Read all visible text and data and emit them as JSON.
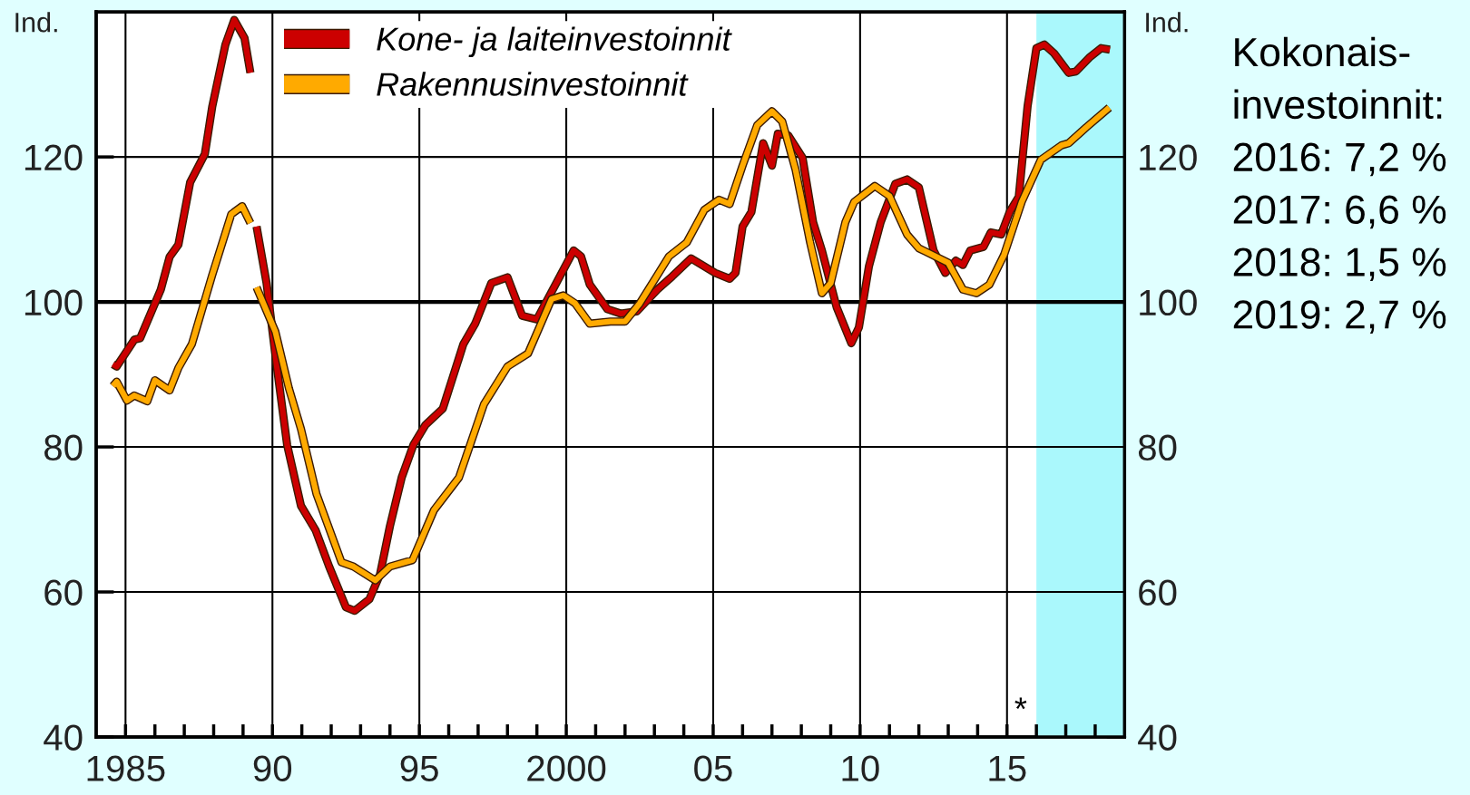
{
  "chart_data": {
    "type": "line",
    "ylabel": "Ind.",
    "y2label": "Ind.",
    "xlim": [
      1984,
      2019
    ],
    "ylim": [
      40,
      140
    ],
    "y2lim": [
      40,
      140
    ],
    "xticks": [
      {
        "value": 1985,
        "label": "1985"
      },
      {
        "value": 1986,
        "label": null
      },
      {
        "value": 1987,
        "label": null
      },
      {
        "value": 1988,
        "label": null
      },
      {
        "value": 1989,
        "label": null
      },
      {
        "value": 1990,
        "label": "90"
      },
      {
        "value": 1991,
        "label": null
      },
      {
        "value": 1992,
        "label": null
      },
      {
        "value": 1993,
        "label": null
      },
      {
        "value": 1994,
        "label": null
      },
      {
        "value": 1995,
        "label": "95"
      },
      {
        "value": 1996,
        "label": null
      },
      {
        "value": 1997,
        "label": null
      },
      {
        "value": 1998,
        "label": null
      },
      {
        "value": 1999,
        "label": null
      },
      {
        "value": 2000,
        "label": "2000"
      },
      {
        "value": 2001,
        "label": null
      },
      {
        "value": 2002,
        "label": null
      },
      {
        "value": 2003,
        "label": null
      },
      {
        "value": 2004,
        "label": null
      },
      {
        "value": 2005,
        "label": "05"
      },
      {
        "value": 2006,
        "label": null
      },
      {
        "value": 2007,
        "label": null
      },
      {
        "value": 2008,
        "label": null
      },
      {
        "value": 2009,
        "label": null
      },
      {
        "value": 2010,
        "label": "10"
      },
      {
        "value": 2011,
        "label": null
      },
      {
        "value": 2012,
        "label": null
      },
      {
        "value": 2013,
        "label": null
      },
      {
        "value": 2014,
        "label": null
      },
      {
        "value": 2015,
        "label": "15"
      },
      {
        "value": 2016,
        "label": null
      },
      {
        "value": 2017,
        "label": null
      },
      {
        "value": 2018,
        "label": null
      }
    ],
    "yticks": [
      40,
      60,
      80,
      100,
      120
    ],
    "y2ticks": [
      40,
      60,
      80,
      100,
      120
    ],
    "grid": true,
    "legend": "top",
    "line_style": "solid",
    "marker": "none",
    "ref_lines": [
      {
        "axis": "y",
        "value": 100,
        "color": "#000000"
      }
    ],
    "bands": [
      {
        "axis": "x",
        "from": 2016,
        "to": 2019,
        "color": "#aaf8fc"
      }
    ],
    "annotations": [
      "*",
      "Kokonais-",
      "investoinnit:",
      "2016: 7,2 %",
      "2017: 6,6 %",
      "2018: 1,5 %",
      "2019: 2,7 %"
    ],
    "series": [
      {
        "name": "Kone- ja laiteinvestoinnit",
        "color": "#cc0000",
        "x": [
          1984.57,
          1984.7,
          1985.3,
          1985.5,
          1986.2,
          1986.5,
          1986.8,
          1987.2,
          1987.7,
          1987.95,
          1988.4,
          1988.7,
          1989.05,
          1989.25,
          1989.35,
          1989.46,
          1989.8,
          1990.14,
          1990.5,
          1990.97,
          1991.47,
          1991.93,
          1992.5,
          1992.8,
          1993.3,
          1993.66,
          1994.0,
          1994.4,
          1994.8,
          1995.2,
          1995.8,
          1996.5,
          1996.9,
          1997.45,
          1998.0,
          1998.5,
          1999.0,
          1999.7,
          2000.25,
          2000.5,
          2000.8,
          2001.4,
          2001.85,
          2002.4,
          2003.1,
          2003.6,
          2004.25,
          2005.07,
          2005.56,
          2005.76,
          2006.0,
          2006.3,
          2006.7,
          2007.0,
          2007.2,
          2007.55,
          2008.04,
          2008.4,
          2008.7,
          2009.2,
          2009.7,
          2009.96,
          2010.3,
          2010.7,
          2011.2,
          2011.6,
          2012.0,
          2012.5,
          2012.9,
          2013.26,
          2013.5,
          2013.75,
          2014.2,
          2014.45,
          2014.8,
          2015.1,
          2015.4,
          2015.7,
          2016.0,
          2016.27,
          2016.6,
          2017.1,
          2017.35,
          2017.8,
          2018.2,
          2018.5
        ],
        "values": [
          91.4,
          91.1,
          94.8,
          95.0,
          101.7,
          106.2,
          107.9,
          116.5,
          120.4,
          126.9,
          135.5,
          138.9,
          136.4,
          131.6,
          null,
          110.4,
          102.6,
          91.4,
          80.3,
          71.9,
          68.5,
          63.5,
          57.9,
          57.4,
          59.0,
          62.4,
          69.1,
          75.8,
          80.3,
          83.0,
          85.3,
          94.2,
          97.0,
          102.6,
          103.4,
          98.1,
          97.6,
          102.9,
          107.1,
          106.3,
          102.4,
          99.0,
          98.4,
          98.7,
          101.7,
          103.5,
          106.0,
          104.0,
          103.2,
          104.0,
          110.4,
          112.4,
          121.9,
          118.8,
          123.2,
          123.0,
          119.9,
          111.0,
          107.1,
          99.3,
          94.3,
          96.5,
          104.9,
          111.0,
          116.3,
          116.9,
          115.8,
          107.1,
          104.0,
          105.7,
          105.1,
          107.1,
          107.6,
          109.6,
          109.3,
          112.5,
          114.5,
          127.0,
          135.0,
          135.5,
          134.3,
          131.6,
          131.8,
          133.7,
          135.0,
          134.8
        ]
      },
      {
        "name": "Rakennusinvestoinnit",
        "color": "#ffaa00",
        "x": [
          1984.57,
          1984.7,
          1985.05,
          1985.3,
          1985.74,
          1986.0,
          1986.5,
          1986.8,
          1987.26,
          1987.95,
          1988.6,
          1988.97,
          1989.25,
          1989.35,
          1989.46,
          1990.1,
          1990.56,
          1990.97,
          1991.5,
          1992.35,
          1992.76,
          1993.5,
          1994.0,
          1994.77,
          1995.5,
          1996.35,
          1997.2,
          1998.0,
          1998.7,
          1999.5,
          1999.9,
          2000.3,
          2000.8,
          2001.5,
          2002.0,
          2002.5,
          2003.07,
          2003.5,
          2004.1,
          2004.7,
          2005.2,
          2005.56,
          2006.0,
          2006.5,
          2007.0,
          2007.35,
          2007.8,
          2008.3,
          2008.7,
          2009.0,
          2009.5,
          2009.8,
          2010.5,
          2011.0,
          2011.6,
          2012.0,
          2013.0,
          2013.5,
          2013.96,
          2014.4,
          2014.9,
          2015.5,
          2016.15,
          2016.85,
          2017.1,
          2017.7,
          2018.48
        ],
        "values": [
          88.4,
          89.0,
          86.4,
          87.1,
          86.3,
          89.2,
          87.8,
          90.9,
          94.2,
          103.7,
          112.1,
          113.2,
          110.9,
          null,
          102.0,
          95.9,
          88.1,
          82.5,
          73.5,
          64.1,
          63.5,
          61.6,
          63.5,
          64.4,
          71.3,
          75.8,
          85.9,
          91.1,
          92.9,
          100.4,
          100.9,
          99.8,
          97.0,
          97.3,
          97.3,
          99.8,
          103.5,
          106.3,
          108.2,
          112.7,
          114.1,
          113.5,
          118.8,
          124.4,
          126.3,
          124.9,
          118.3,
          108.2,
          101.2,
          102.6,
          111.0,
          113.8,
          116.0,
          114.6,
          109.3,
          107.4,
          105.4,
          101.7,
          101.2,
          102.4,
          106.5,
          113.8,
          119.6,
          121.6,
          121.9,
          124.1,
          126.8
        ]
      }
    ]
  }
}
